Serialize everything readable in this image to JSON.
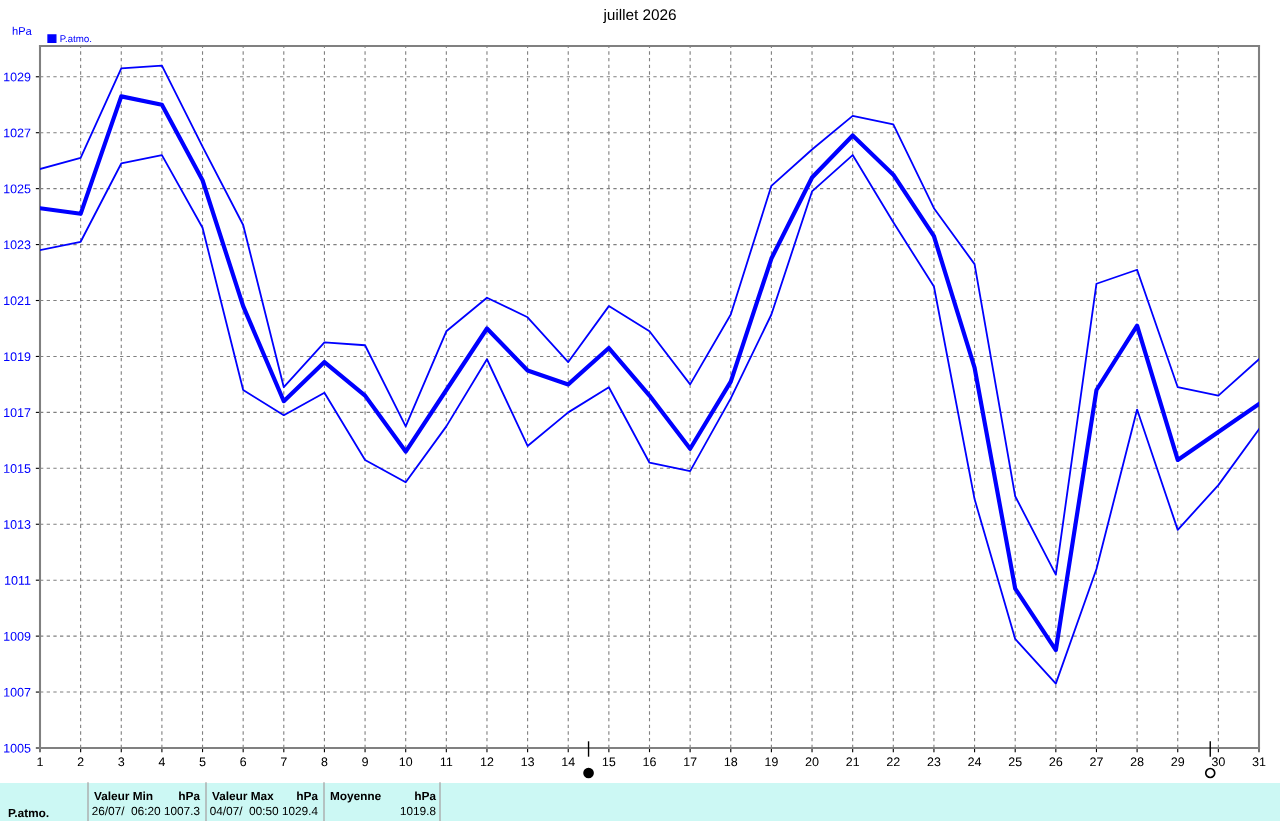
{
  "chart_data": {
    "type": "line",
    "title": "juillet 2026",
    "ylabel": "hPa",
    "x": [
      1,
      2,
      3,
      4,
      5,
      6,
      7,
      8,
      9,
      10,
      11,
      12,
      13,
      14,
      15,
      16,
      17,
      18,
      19,
      20,
      21,
      22,
      23,
      24,
      25,
      26,
      27,
      28,
      29,
      30,
      31
    ],
    "series": [
      {
        "color": "#0000ff",
        "values": [
          1025.7,
          1026.1,
          1029.3,
          1029.4,
          1026.5,
          1023.7,
          1017.9,
          1019.5,
          1019.4,
          1016.5,
          1019.9,
          1021.1,
          1020.4,
          1018.8,
          1020.8,
          1019.9,
          1018.0,
          1020.5,
          1025.1,
          1026.4,
          1027.6,
          1027.3,
          1024.3,
          1022.3,
          1014.0,
          1011.2,
          1021.6,
          1022.1,
          1017.9,
          1017.6,
          1018.9
        ]
      },
      {
        "name": "P.atmo.",
        "color": "#0000ff",
        "values": [
          1024.3,
          1024.1,
          1028.3,
          1028.0,
          1025.3,
          1020.8,
          1017.4,
          1018.8,
          1017.6,
          1015.6,
          1017.8,
          1020.0,
          1018.5,
          1018.0,
          1019.3,
          1017.6,
          1015.7,
          1018.1,
          1022.5,
          1025.4,
          1026.9,
          1025.5,
          1023.3,
          1018.6,
          1010.7,
          1008.5,
          1017.8,
          1020.1,
          1015.3,
          1016.3,
          1017.3
        ]
      },
      {
        "color": "#0000ff",
        "values": [
          1022.8,
          1023.1,
          1025.9,
          1026.2,
          1023.6,
          1017.8,
          1016.9,
          1017.7,
          1015.3,
          1014.5,
          1016.5,
          1018.9,
          1015.8,
          1017.0,
          1017.9,
          1015.2,
          1014.9,
          1017.5,
          1020.5,
          1024.9,
          1026.2,
          1023.8,
          1021.5,
          1013.9,
          1008.9,
          1007.3,
          1011.4,
          1017.1,
          1012.8,
          1014.4,
          1016.4
        ]
      }
    ],
    "xlim": [
      1,
      31
    ],
    "xticks": [
      1,
      2,
      3,
      4,
      5,
      6,
      7,
      8,
      9,
      10,
      11,
      12,
      13,
      14,
      15,
      16,
      17,
      18,
      19,
      20,
      21,
      22,
      23,
      24,
      25,
      26,
      27,
      28,
      29,
      30,
      31
    ],
    "ylim": [
      1005,
      1030.1
    ],
    "yticks": [
      1005,
      1007,
      1009,
      1011,
      1013,
      1015,
      1017,
      1019,
      1021,
      1023,
      1025,
      1027,
      1029
    ],
    "grid": true,
    "legend": "top left",
    "marker": "none",
    "line_style": "solid",
    "annotations": [
      "P.atmo.",
      "Valeur Min",
      "hPa",
      "26/07/  06:20 1007.3",
      "Valeur Max",
      "hPa",
      "04/07/  00:50 1029.4",
      "Moyenne",
      "hPa",
      "1019.8"
    ]
  }
}
